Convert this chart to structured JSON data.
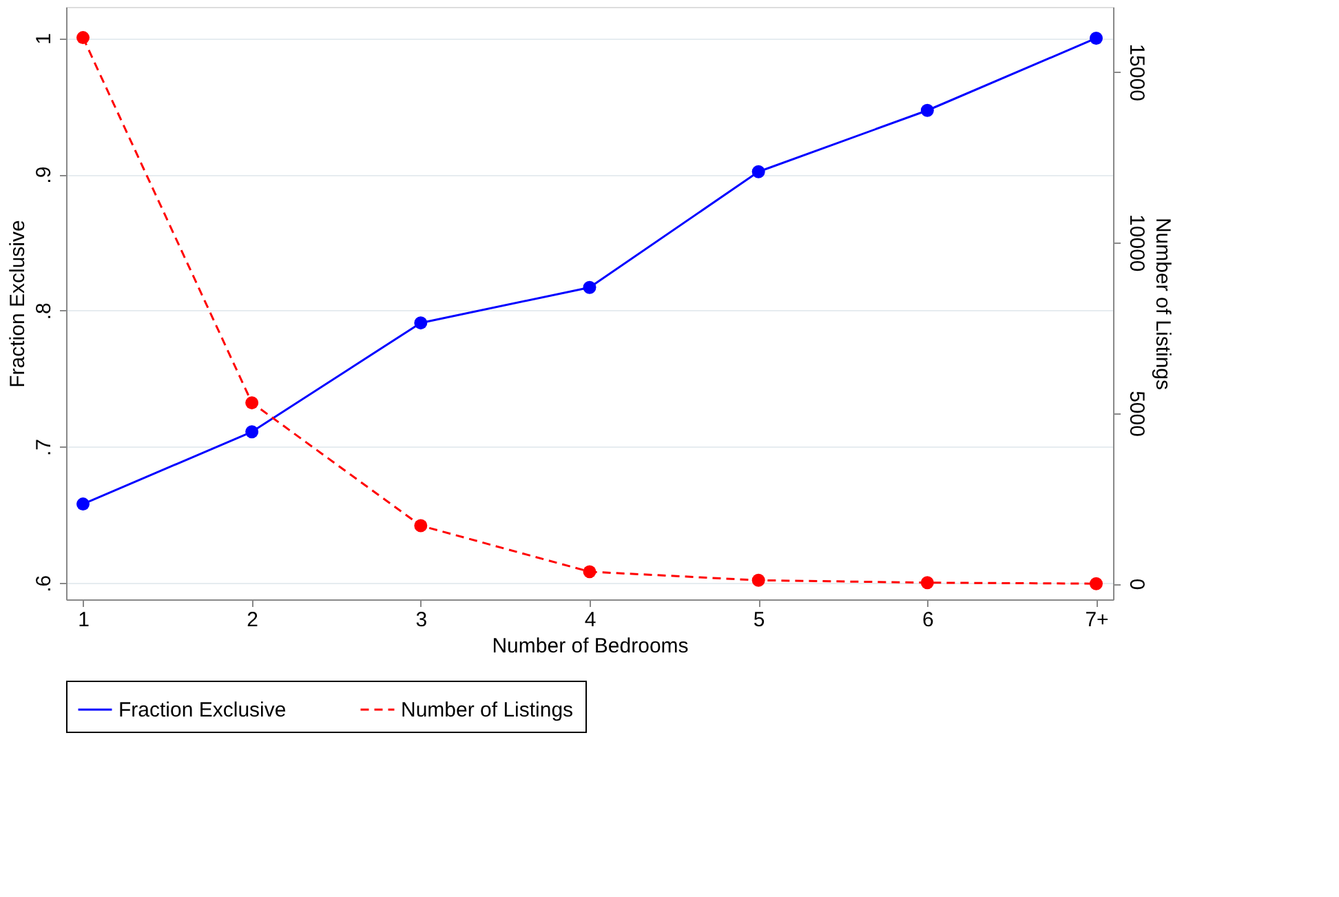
{
  "chart_data": {
    "type": "line",
    "xlabel": "Number of Bedrooms",
    "ylabel": "Fraction Exclusive",
    "y2label": "Number of Listings",
    "categories": [
      "1",
      "2",
      "3",
      "4",
      "5",
      "6",
      "7+"
    ],
    "series": [
      {
        "name": "Fraction Exclusive",
        "color": "#0000ff",
        "values": [
          0.658,
          0.711,
          0.791,
          0.817,
          0.902,
          0.947,
          1.0
        ],
        "line_style": "solid"
      },
      {
        "name": "Number of Listings",
        "color": "#ff0000",
        "values": [
          16000,
          5300,
          1700,
          350,
          100,
          30,
          0
        ],
        "axis": "y2",
        "line_style": "dashed"
      }
    ],
    "ylim": [
      0.588,
      1.023
    ],
    "yticks": [
      {
        "value": 0.6,
        "label": ".6"
      },
      {
        "value": 0.7,
        "label": ".7"
      },
      {
        "value": 0.8,
        "label": ".8"
      },
      {
        "value": 0.9,
        "label": ".9"
      },
      1
    ],
    "y2lim": [
      -460,
      16900
    ],
    "y2ticks": [
      0,
      5000,
      10000,
      15000
    ],
    "grid": "y",
    "legend": "bottom",
    "marker": "circle"
  }
}
